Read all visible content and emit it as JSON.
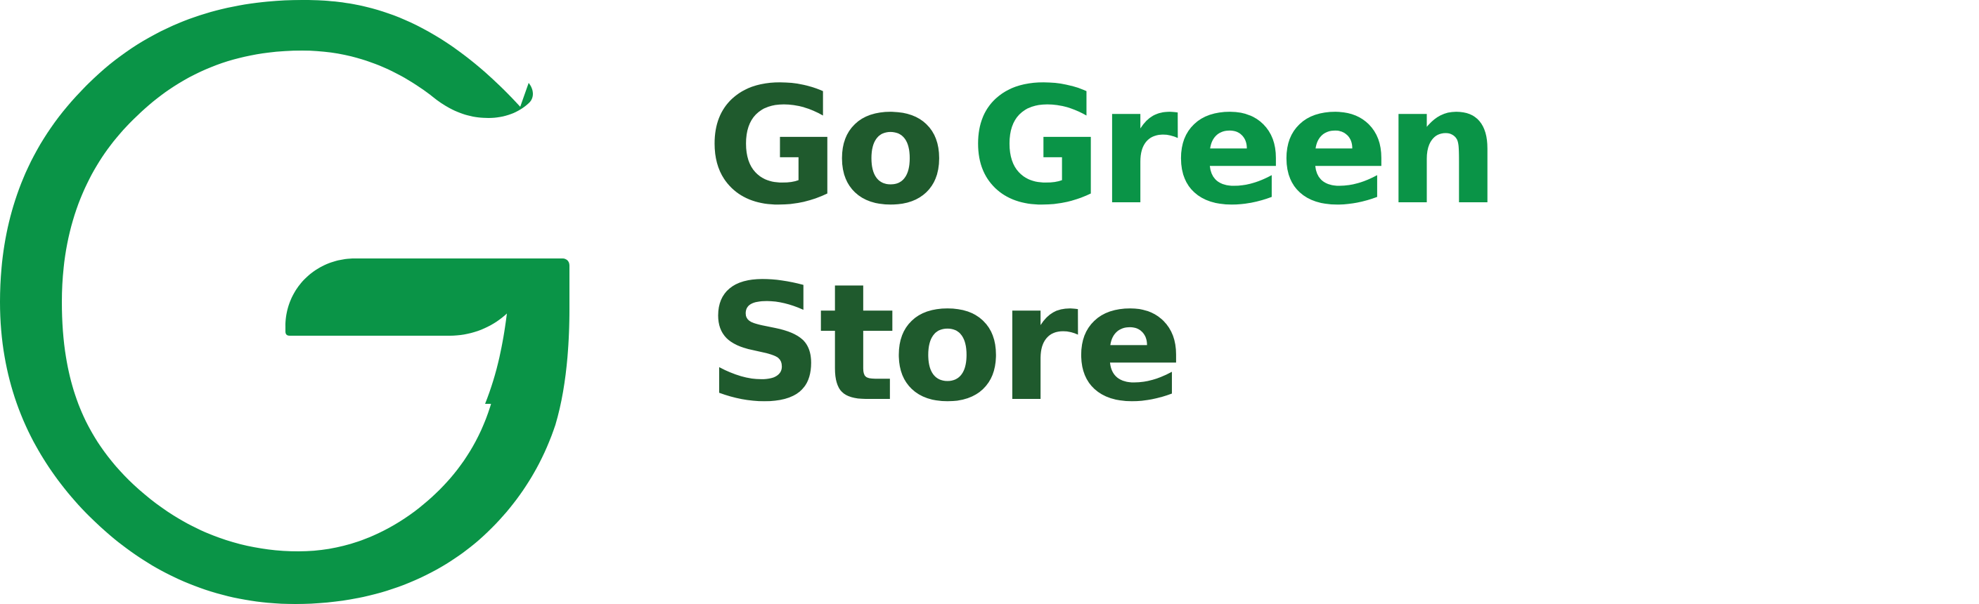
{
  "logo": {
    "line1": {
      "word1": "Go",
      "word2": "Green"
    },
    "line2": {
      "word1": "Store"
    },
    "colors": {
      "bright_green": "#0a9447",
      "dark_green": "#1f5a2d",
      "background": "#ffffff"
    },
    "icon": "g-leaf-mark-icon"
  }
}
